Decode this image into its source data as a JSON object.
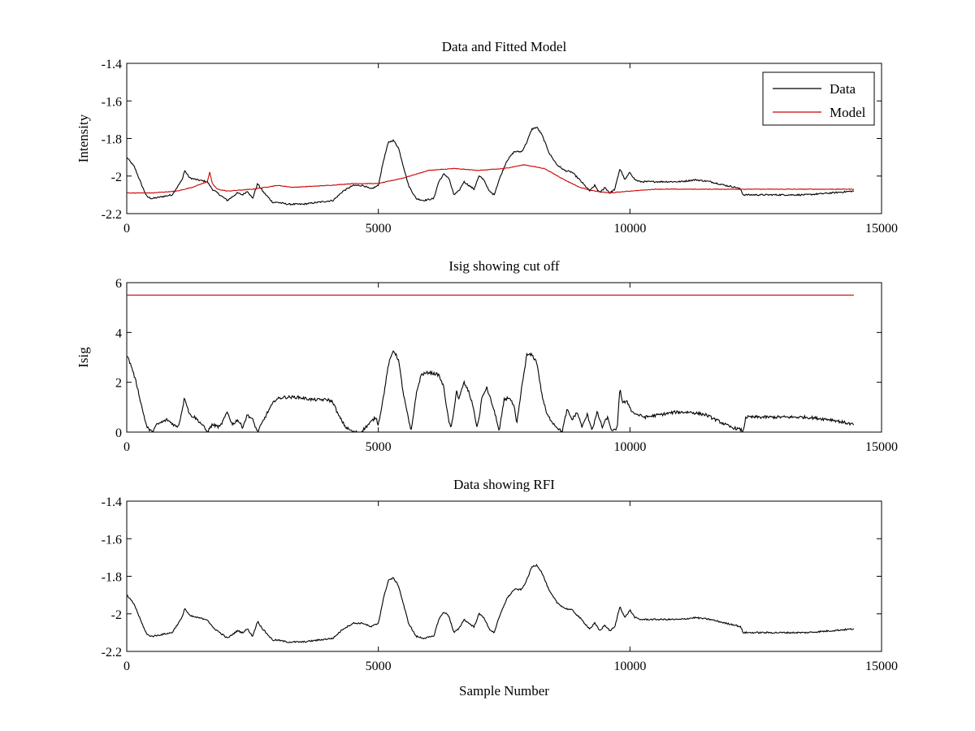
{
  "figure": {
    "xlabel": "Sample Number"
  },
  "chart_data": [
    {
      "type": "line",
      "title": "Data and Fitted Model",
      "xlabel": "",
      "ylabel": "Intensity",
      "xlim": [
        0,
        15000
      ],
      "ylim": [
        -2.2,
        -1.4
      ],
      "xticks": [
        0,
        5000,
        10000,
        15000
      ],
      "xtick_labels": [
        "0",
        "5000",
        "10000",
        "15000"
      ],
      "yticks": [
        -2.2,
        -2.0,
        -1.8,
        -1.6,
        -1.4
      ],
      "ytick_labels": [
        "-2.2",
        "-2",
        "-1.8",
        "-1.6",
        "-1.4"
      ],
      "grid": false,
      "legend": {
        "position": "top-right",
        "entries": [
          "Data",
          "Model"
        ]
      },
      "series": [
        {
          "name": "Data",
          "color": "#000000",
          "noise": 0.004,
          "x": [
            0,
            150,
            300,
            400,
            500,
            700,
            900,
            1100,
            1150,
            1250,
            1400,
            1600,
            1700,
            1850,
            2000,
            2200,
            2300,
            2400,
            2500,
            2600,
            2700,
            2800,
            2900,
            3000,
            3200,
            3500,
            3800,
            4100,
            4300,
            4500,
            4700,
            4850,
            5000,
            5100,
            5200,
            5300,
            5400,
            5500,
            5600,
            5750,
            5900,
            6100,
            6200,
            6300,
            6400,
            6500,
            6600,
            6700,
            6800,
            6900,
            7000,
            7100,
            7200,
            7300,
            7400,
            7550,
            7700,
            7850,
            7950,
            8050,
            8150,
            8250,
            8400,
            8550,
            8700,
            8850,
            9000,
            9100,
            9200,
            9300,
            9400,
            9500,
            9600,
            9700,
            9800,
            9900,
            10000,
            10100,
            10200,
            10400,
            10700,
            11000,
            11300,
            11600,
            11900,
            12100,
            12200,
            12250,
            12500,
            13000,
            13500,
            14000,
            14450
          ],
          "y": [
            -1.9,
            -1.95,
            -2.05,
            -2.11,
            -2.12,
            -2.11,
            -2.1,
            -2.02,
            -1.97,
            -2.01,
            -2.02,
            -2.03,
            -2.07,
            -2.1,
            -2.13,
            -2.09,
            -2.1,
            -2.08,
            -2.12,
            -2.04,
            -2.08,
            -2.11,
            -2.14,
            -2.14,
            -2.15,
            -2.15,
            -2.14,
            -2.13,
            -2.08,
            -2.05,
            -2.05,
            -2.07,
            -2.05,
            -1.92,
            -1.82,
            -1.81,
            -1.85,
            -1.95,
            -2.05,
            -2.12,
            -2.13,
            -2.12,
            -2.03,
            -1.99,
            -2.01,
            -2.1,
            -2.08,
            -2.03,
            -2.05,
            -2.07,
            -2.0,
            -2.02,
            -2.08,
            -2.1,
            -2.02,
            -1.92,
            -1.87,
            -1.87,
            -1.82,
            -1.75,
            -1.74,
            -1.78,
            -1.88,
            -1.94,
            -1.97,
            -1.98,
            -2.02,
            -2.05,
            -2.08,
            -2.05,
            -2.09,
            -2.06,
            -2.09,
            -2.07,
            -1.96,
            -2.02,
            -1.98,
            -2.02,
            -2.03,
            -2.03,
            -2.03,
            -2.03,
            -2.02,
            -2.03,
            -2.05,
            -2.06,
            -2.07,
            -2.1,
            -2.1,
            -2.1,
            -2.1,
            -2.09,
            -2.08
          ]
        },
        {
          "name": "Model",
          "color": "#cc0000",
          "noise": 0.0015,
          "x": [
            0,
            500,
            1000,
            1300,
            1500,
            1600,
            1650,
            1700,
            1800,
            2000,
            2500,
            3000,
            3300,
            4000,
            4500,
            5000,
            5500,
            6000,
            6500,
            7000,
            7500,
            7900,
            8300,
            8700,
            9000,
            9300,
            9600,
            10000,
            10500,
            11000,
            12000,
            12200,
            13000,
            14450
          ],
          "y": [
            -2.09,
            -2.09,
            -2.08,
            -2.06,
            -2.04,
            -2.03,
            -1.98,
            -2.04,
            -2.07,
            -2.08,
            -2.07,
            -2.05,
            -2.06,
            -2.05,
            -2.04,
            -2.04,
            -2.01,
            -1.97,
            -1.96,
            -1.97,
            -1.96,
            -1.94,
            -1.96,
            -2.02,
            -2.06,
            -2.08,
            -2.09,
            -2.08,
            -2.07,
            -2.07,
            -2.07,
            -2.07,
            -2.07,
            -2.07
          ]
        }
      ]
    },
    {
      "type": "line",
      "title": "Isig showing cut off",
      "xlabel": "",
      "ylabel": "Isig",
      "xlim": [
        0,
        15000
      ],
      "ylim": [
        0,
        6
      ],
      "xticks": [
        0,
        5000,
        10000,
        15000
      ],
      "xtick_labels": [
        "0",
        "5000",
        "10000",
        "15000"
      ],
      "yticks": [
        0,
        2,
        4,
        6
      ],
      "ytick_labels": [
        "0",
        "2",
        "4",
        "6"
      ],
      "grid": false,
      "series": [
        {
          "color": "#000000",
          "noise": 0.06,
          "x": [
            0,
            100,
            200,
            300,
            400,
            500,
            600,
            800,
            1000,
            1050,
            1150,
            1250,
            1350,
            1500,
            1600,
            1700,
            1850,
            2000,
            2100,
            2200,
            2300,
            2400,
            2500,
            2600,
            2700,
            2800,
            2950,
            3100,
            3400,
            3700,
            4000,
            4100,
            4200,
            4350,
            4500,
            4650,
            4800,
            4950,
            5000,
            5100,
            5200,
            5300,
            5400,
            5500,
            5600,
            5650,
            5750,
            5850,
            6000,
            6200,
            6300,
            6400,
            6450,
            6500,
            6550,
            6600,
            6700,
            6800,
            6900,
            6950,
            7000,
            7050,
            7150,
            7250,
            7350,
            7400,
            7500,
            7600,
            7700,
            7750,
            7850,
            7950,
            8050,
            8150,
            8250,
            8350,
            8500,
            8650,
            8750,
            8850,
            8950,
            9050,
            9150,
            9250,
            9350,
            9450,
            9550,
            9650,
            9750,
            9800,
            9850,
            9950,
            10050,
            10150,
            10300,
            10600,
            10900,
            11200,
            11500,
            11800,
            12000,
            12200,
            12250,
            12300,
            12500,
            13000,
            13500,
            14000,
            14450
          ],
          "y": [
            3.1,
            2.6,
            1.9,
            1.0,
            0.2,
            0.0,
            0.3,
            0.5,
            0.2,
            0.4,
            1.4,
            0.7,
            0.6,
            0.3,
            0.0,
            0.3,
            0.2,
            0.8,
            0.3,
            0.5,
            0.2,
            0.7,
            0.5,
            0.0,
            0.4,
            0.8,
            1.3,
            1.4,
            1.4,
            1.3,
            1.3,
            1.2,
            0.7,
            0.2,
            0.0,
            0.0,
            0.3,
            0.6,
            0.3,
            1.4,
            2.7,
            3.3,
            2.9,
            1.5,
            0.5,
            0.0,
            1.5,
            2.3,
            2.4,
            2.3,
            1.8,
            0.4,
            0.2,
            0.8,
            1.7,
            1.3,
            2.0,
            1.6,
            0.9,
            0.2,
            0.5,
            1.3,
            1.8,
            1.2,
            0.5,
            0.0,
            1.3,
            1.4,
            1.0,
            0.3,
            1.8,
            3.1,
            3.1,
            2.8,
            1.5,
            0.7,
            0.3,
            0.0,
            0.9,
            0.5,
            0.8,
            0.2,
            0.7,
            0.1,
            0.8,
            0.2,
            0.6,
            0.0,
            0.2,
            1.8,
            1.2,
            1.2,
            0.8,
            0.7,
            0.6,
            0.7,
            0.8,
            0.8,
            0.7,
            0.4,
            0.2,
            0.1,
            0.0,
            0.6,
            0.6,
            0.6,
            0.6,
            0.5,
            0.3
          ]
        },
        {
          "color": "#cc0000",
          "noise": 0,
          "x": [
            0,
            14450
          ],
          "y": [
            5.5,
            5.5
          ]
        }
      ]
    },
    {
      "type": "line",
      "title": "Data showing RFI",
      "xlabel": "Sample Number",
      "ylabel": "",
      "xlim": [
        0,
        15000
      ],
      "ylim": [
        -2.2,
        -1.4
      ],
      "xticks": [
        0,
        5000,
        10000,
        15000
      ],
      "xtick_labels": [
        "0",
        "5000",
        "10000",
        "15000"
      ],
      "yticks": [
        -2.2,
        -2.0,
        -1.8,
        -1.6,
        -1.4
      ],
      "ytick_labels": [
        "-2.2",
        "-2",
        "-1.8",
        "-1.6",
        "-1.4"
      ],
      "grid": false,
      "series": [
        {
          "color": "#000000",
          "noise": 0.004,
          "x": [
            0,
            150,
            300,
            400,
            500,
            700,
            900,
            1100,
            1150,
            1250,
            1400,
            1600,
            1700,
            1850,
            2000,
            2200,
            2300,
            2400,
            2500,
            2600,
            2700,
            2800,
            2900,
            3000,
            3200,
            3500,
            3800,
            4100,
            4300,
            4500,
            4700,
            4850,
            5000,
            5100,
            5200,
            5300,
            5400,
            5500,
            5600,
            5750,
            5900,
            6100,
            6200,
            6300,
            6400,
            6500,
            6600,
            6700,
            6800,
            6900,
            7000,
            7100,
            7200,
            7300,
            7400,
            7550,
            7700,
            7850,
            7950,
            8050,
            8150,
            8250,
            8400,
            8550,
            8700,
            8850,
            9000,
            9100,
            9200,
            9300,
            9400,
            9500,
            9600,
            9700,
            9800,
            9900,
            10000,
            10100,
            10200,
            10400,
            10700,
            11000,
            11300,
            11600,
            11900,
            12100,
            12200,
            12250,
            12500,
            13000,
            13500,
            14000,
            14450
          ],
          "y": [
            -1.9,
            -1.95,
            -2.05,
            -2.11,
            -2.12,
            -2.11,
            -2.1,
            -2.02,
            -1.97,
            -2.01,
            -2.02,
            -2.03,
            -2.07,
            -2.1,
            -2.13,
            -2.09,
            -2.1,
            -2.08,
            -2.12,
            -2.04,
            -2.08,
            -2.11,
            -2.14,
            -2.14,
            -2.15,
            -2.15,
            -2.14,
            -2.13,
            -2.08,
            -2.05,
            -2.05,
            -2.07,
            -2.05,
            -1.92,
            -1.82,
            -1.81,
            -1.85,
            -1.95,
            -2.05,
            -2.12,
            -2.13,
            -2.12,
            -2.03,
            -1.99,
            -2.01,
            -2.1,
            -2.08,
            -2.03,
            -2.05,
            -2.07,
            -2.0,
            -2.02,
            -2.08,
            -2.1,
            -2.02,
            -1.92,
            -1.87,
            -1.87,
            -1.82,
            -1.75,
            -1.74,
            -1.78,
            -1.88,
            -1.94,
            -1.97,
            -1.98,
            -2.02,
            -2.05,
            -2.08,
            -2.05,
            -2.09,
            -2.06,
            -2.09,
            -2.07,
            -1.96,
            -2.02,
            -1.98,
            -2.02,
            -2.03,
            -2.03,
            -2.03,
            -2.03,
            -2.02,
            -2.03,
            -2.05,
            -2.06,
            -2.07,
            -2.1,
            -2.1,
            -2.1,
            -2.1,
            -2.09,
            -2.08
          ]
        }
      ]
    }
  ]
}
